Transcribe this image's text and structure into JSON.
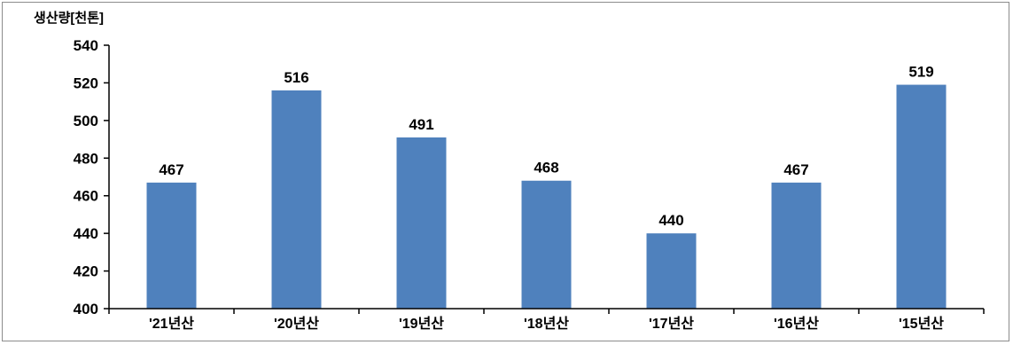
{
  "chart_data": {
    "type": "bar",
    "ylabel": "생산량[천톤]",
    "categories": [
      "'21년산",
      "'20년산",
      "'19년산",
      "'18년산",
      "'17년산",
      "'16년산",
      "'15년산"
    ],
    "values": [
      467,
      516,
      491,
      468,
      440,
      467,
      519
    ],
    "data_labels": [
      "467",
      "516",
      "491",
      "468",
      "440",
      "467",
      "519"
    ],
    "ylim": [
      400,
      540
    ],
    "yticks": [
      400,
      420,
      440,
      460,
      480,
      500,
      520,
      540
    ],
    "grid": false,
    "legend": "none",
    "bar_color": "#4f81bd"
  }
}
